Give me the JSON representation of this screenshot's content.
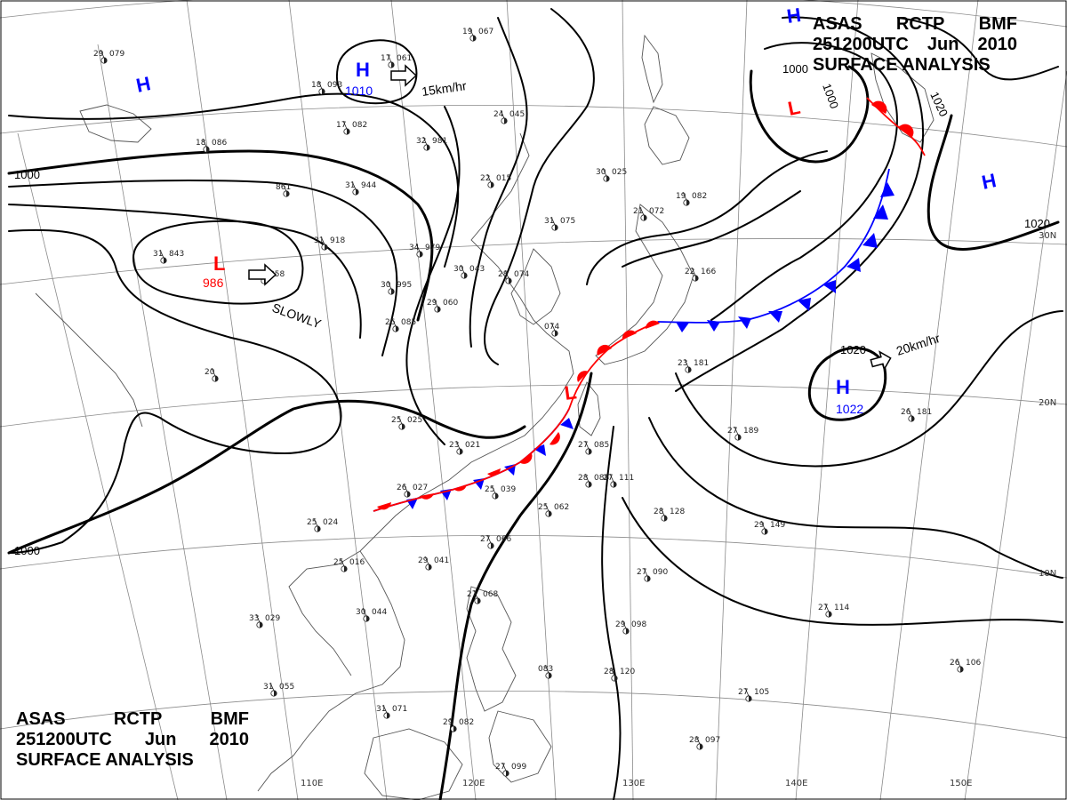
{
  "title": {
    "line1": [
      "ASAS",
      "RCTP",
      "BMF"
    ],
    "line2": [
      "251200UTC",
      "Jun",
      "2010"
    ],
    "line3": "SURFACE ANALYSIS"
  },
  "longitude_labels": [
    "110E",
    "120E",
    "130E",
    "140E",
    "150E"
  ],
  "latitude_labels": [
    "30N",
    "20N",
    "10N"
  ],
  "isobar_labels": {
    "west_1000": "1000",
    "sw_1000": "1000",
    "ne_1000": "1000",
    "ne_1000_inner": "1000",
    "ne_1020": "1020",
    "east_1020": "1020",
    "pacific_1020": "1020"
  },
  "pressure_centers": {
    "low_west": {
      "letter": "L",
      "value": "986",
      "motion": "SLOWLY"
    },
    "high_north": {
      "letter": "H",
      "value": "1010",
      "motion": "15km/hr"
    },
    "high_nw": {
      "letter": "H"
    },
    "high_ne_corner": {
      "letter": "H"
    },
    "high_east": {
      "letter": "H"
    },
    "low_ne": {
      "letter": "L"
    },
    "low_taiwan": {
      "letter": "L"
    },
    "high_pacific": {
      "letter": "H",
      "value": "1022",
      "motion": "20km/hr"
    }
  },
  "stations": [
    {
      "t": "29",
      "p": "079"
    },
    {
      "t": "18",
      "p": "093"
    },
    {
      "t": "17",
      "p": "061"
    },
    {
      "t": "19",
      "p": "067"
    },
    {
      "t": "24",
      "p": "045"
    },
    {
      "t": "22",
      "p": "015"
    },
    {
      "t": "18",
      "p": "086"
    },
    {
      "t": "17",
      "p": "082"
    },
    {
      "t": "32",
      "p": "981"
    },
    {
      "t": "31",
      "p": "944"
    },
    {
      "t": "861",
      "p": ""
    },
    {
      "t": "31",
      "p": "843"
    },
    {
      "t": "31",
      "p": "918"
    },
    {
      "t": "30",
      "p": "858"
    },
    {
      "t": "34",
      "p": "979"
    },
    {
      "t": "30",
      "p": "995"
    },
    {
      "t": "30",
      "p": "043"
    },
    {
      "t": "28",
      "p": "074"
    },
    {
      "t": "31",
      "p": "075"
    },
    {
      "t": "30",
      "p": "025"
    },
    {
      "t": "21",
      "p": "072"
    },
    {
      "t": "19",
      "p": "082"
    },
    {
      "t": "22",
      "p": "166"
    },
    {
      "t": "29",
      "p": "060"
    },
    {
      "t": "26",
      "p": "085"
    },
    {
      "t": "074",
      "p": ""
    },
    {
      "t": "23",
      "p": "181"
    },
    {
      "t": "20",
      "p": ""
    },
    {
      "t": "25",
      "p": "025"
    },
    {
      "t": "23",
      "p": "021"
    },
    {
      "t": "26",
      "p": "027"
    },
    {
      "t": "25",
      "p": "039"
    },
    {
      "t": "25",
      "p": "062"
    },
    {
      "t": "27",
      "p": "085"
    },
    {
      "t": "28",
      "p": "088"
    },
    {
      "t": "27",
      "p": "111"
    },
    {
      "t": "28",
      "p": "128"
    },
    {
      "t": "27",
      "p": "189"
    },
    {
      "t": "26",
      "p": "181"
    },
    {
      "t": "25",
      "p": "024"
    },
    {
      "t": "25",
      "p": "016"
    },
    {
      "t": "29",
      "p": "041"
    },
    {
      "t": "27",
      "p": "066"
    },
    {
      "t": "29",
      "p": "149"
    },
    {
      "t": "30",
      "p": "044"
    },
    {
      "t": "33",
      "p": "029"
    },
    {
      "t": "27",
      "p": "068"
    },
    {
      "t": "27",
      "p": "090"
    },
    {
      "t": "27",
      "p": "114"
    },
    {
      "t": "29",
      "p": "098"
    },
    {
      "t": "31",
      "p": "055"
    },
    {
      "t": "083",
      "p": ""
    },
    {
      "t": "28",
      "p": "120"
    },
    {
      "t": "26",
      "p": "106"
    },
    {
      "t": "27",
      "p": "105"
    },
    {
      "t": "31",
      "p": "071"
    },
    {
      "t": "29",
      "p": "082"
    },
    {
      "t": "28",
      "p": "097"
    },
    {
      "t": "27",
      "p": "099"
    }
  ],
  "colors": {
    "isobar": "#000000",
    "cold_front": "#0000ff",
    "warm_front": "#ff0000",
    "high": "#0000ff",
    "low": "#ff0000",
    "coast": "#555555",
    "grid": "#777777"
  }
}
